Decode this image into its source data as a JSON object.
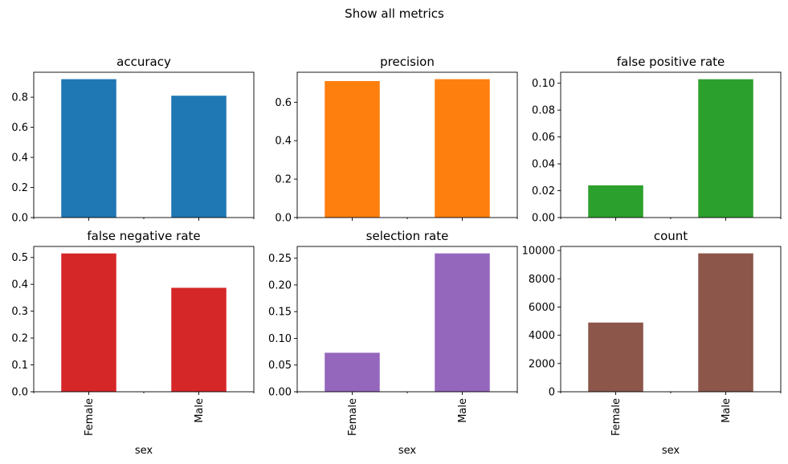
{
  "figure_title": "Show all metrics",
  "chart_data": [
    {
      "type": "bar",
      "title": "accuracy",
      "categories": [
        "Female",
        "Male"
      ],
      "values": [
        0.92,
        0.81
      ],
      "color": "#1f77b4",
      "ylim": [
        0,
        0.966
      ],
      "yticks": [
        "0.0",
        "0.2",
        "0.4",
        "0.6",
        "0.8"
      ],
      "ytick_values": [
        0,
        0.2,
        0.4,
        0.6,
        0.8
      ],
      "xlabel": "",
      "show_xticklabels": false
    },
    {
      "type": "bar",
      "title": "precision",
      "categories": [
        "Female",
        "Male"
      ],
      "values": [
        0.71,
        0.72
      ],
      "color": "#ff7f0e",
      "ylim": [
        0,
        0.756
      ],
      "yticks": [
        "0.0",
        "0.2",
        "0.4",
        "0.6"
      ],
      "ytick_values": [
        0,
        0.2,
        0.4,
        0.6
      ],
      "xlabel": "",
      "show_xticklabels": false
    },
    {
      "type": "bar",
      "title": "false positive rate",
      "categories": [
        "Female",
        "Male"
      ],
      "values": [
        0.024,
        0.103
      ],
      "color": "#2ca02c",
      "ylim": [
        0,
        0.1082
      ],
      "yticks": [
        "0.00",
        "0.02",
        "0.04",
        "0.06",
        "0.08",
        "0.10"
      ],
      "ytick_values": [
        0,
        0.02,
        0.04,
        0.06,
        0.08,
        0.1
      ],
      "xlabel": "",
      "show_xticklabels": false
    },
    {
      "type": "bar",
      "title": "false negative rate",
      "categories": [
        "Female",
        "Male"
      ],
      "values": [
        0.515,
        0.387
      ],
      "color": "#d62728",
      "ylim": [
        0,
        0.541
      ],
      "yticks": [
        "0.0",
        "0.1",
        "0.2",
        "0.3",
        "0.4",
        "0.5"
      ],
      "ytick_values": [
        0,
        0.1,
        0.2,
        0.3,
        0.4,
        0.5
      ],
      "xlabel": "sex",
      "show_xticklabels": true
    },
    {
      "type": "bar",
      "title": "selection rate",
      "categories": [
        "Female",
        "Male"
      ],
      "values": [
        0.073,
        0.259
      ],
      "color": "#9467bd",
      "ylim": [
        0,
        0.272
      ],
      "yticks": [
        "0.00",
        "0.05",
        "0.10",
        "0.15",
        "0.20",
        "0.25"
      ],
      "ytick_values": [
        0,
        0.05,
        0.1,
        0.15,
        0.2,
        0.25
      ],
      "xlabel": "sex",
      "show_xticklabels": true
    },
    {
      "type": "bar",
      "title": "count",
      "categories": [
        "Female",
        "Male"
      ],
      "values": [
        4900,
        9800
      ],
      "color": "#8c564b",
      "ylim": [
        0,
        10290
      ],
      "yticks": [
        "0",
        "2000",
        "4000",
        "6000",
        "8000",
        "10000"
      ],
      "ytick_values": [
        0,
        2000,
        4000,
        6000,
        8000,
        10000
      ],
      "xlabel": "sex",
      "show_xticklabels": true
    }
  ]
}
